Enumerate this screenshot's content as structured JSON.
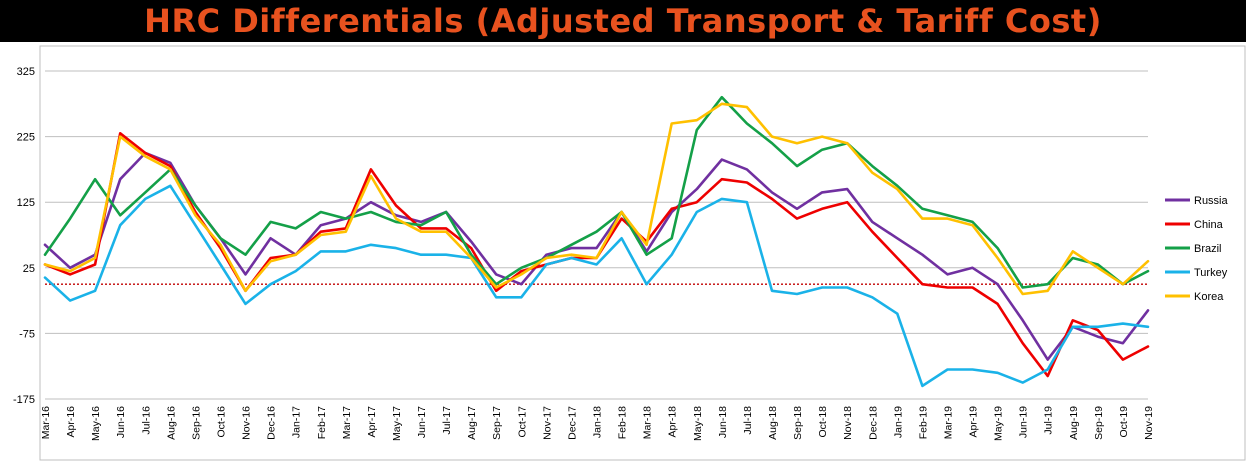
{
  "title": "HRC Differentials (Adjusted Transport & Tariff Cost)",
  "chart_data": {
    "type": "line",
    "title": "HRC Differentials (Adjusted Transport & Tariff Cost)",
    "ylim": [
      -175,
      350
    ],
    "yticks": [
      325,
      225,
      125,
      25,
      -75,
      -175
    ],
    "grid": true,
    "legend": "right",
    "reference_line": {
      "y": 0,
      "color": "#c00000",
      "style": "dotted"
    },
    "categories": [
      "Mar-16",
      "Apr-16",
      "May-16",
      "Jun-16",
      "Jul-16",
      "Aug-16",
      "Sep-16",
      "Oct-16",
      "Nov-16",
      "Dec-16",
      "Jan-17",
      "Feb-17",
      "Mar-17",
      "Apr-17",
      "May-17",
      "Jun-17",
      "Jul-17",
      "Aug-17",
      "Sep-17",
      "Oct-17",
      "Nov-17",
      "Dec-17",
      "Jan-18",
      "Feb-18",
      "Mar-18",
      "Apr-18",
      "May-18",
      "Jun-18",
      "Jul-18",
      "Aug-18",
      "Sep-18",
      "Oct-18",
      "Nov-18",
      "Dec-18",
      "Jan-19",
      "Feb-19",
      "Mar-19",
      "Apr-19",
      "May-19",
      "Jun-19",
      "Jul-19",
      "Aug-19",
      "Sep-19",
      "Oct-19",
      "Nov-19"
    ],
    "series": [
      {
        "name": "Russia",
        "color": "#7030a0",
        "values": [
          [
            0,
            60
          ],
          [
            1.0,
            25
          ],
          [
            2.0,
            45
          ],
          [
            3.0,
            160
          ],
          [
            4.0,
            200
          ],
          [
            5.0,
            185
          ],
          [
            6.0,
            120
          ],
          [
            7.0,
            70
          ],
          [
            8.0,
            15
          ],
          [
            9.0,
            70
          ],
          [
            10.0,
            45
          ],
          [
            11.0,
            90
          ],
          [
            12.0,
            100
          ],
          [
            13.0,
            125
          ],
          [
            14.0,
            105
          ],
          [
            15.0,
            95
          ],
          [
            16.0,
            110
          ],
          [
            17.0,
            65
          ],
          [
            18.0,
            15
          ],
          [
            19.0,
            0
          ],
          [
            20.0,
            45
          ],
          [
            21.0,
            55
          ],
          [
            22.0,
            55
          ],
          [
            23.0,
            110
          ],
          [
            24.0,
            50
          ],
          [
            25.0,
            110
          ],
          [
            26.0,
            145
          ],
          [
            27.0,
            190
          ],
          [
            28.0,
            175
          ],
          [
            29.0,
            140
          ],
          [
            30.0,
            115
          ],
          [
            31.0,
            140
          ],
          [
            32.0,
            145
          ],
          [
            33.0,
            95
          ],
          [
            34.0,
            70
          ],
          [
            35.0,
            45
          ],
          [
            36.0,
            15
          ],
          [
            37.0,
            25
          ],
          [
            38.0,
            0
          ],
          [
            39.0,
            -55
          ],
          [
            40.0,
            -115
          ],
          [
            41.0,
            -65
          ],
          [
            42.0,
            -80
          ],
          [
            43.0,
            -90
          ],
          [
            44.0,
            -40
          ]
        ]
      },
      {
        "name": "China",
        "color": "#ee0000",
        "values": [
          [
            0,
            30
          ],
          [
            1.0,
            15
          ],
          [
            2.0,
            30
          ],
          [
            3.0,
            230
          ],
          [
            4.0,
            200
          ],
          [
            5.0,
            180
          ],
          [
            6.0,
            110
          ],
          [
            7.0,
            55
          ],
          [
            8.0,
            -10
          ],
          [
            9.0,
            40
          ],
          [
            10.0,
            45
          ],
          [
            11.0,
            80
          ],
          [
            12.0,
            85
          ],
          [
            13.0,
            175
          ],
          [
            14.0,
            120
          ],
          [
            15.0,
            85
          ],
          [
            16.0,
            85
          ],
          [
            17.0,
            55
          ],
          [
            18.0,
            -10
          ],
          [
            19.0,
            20
          ],
          [
            20.0,
            30
          ],
          [
            21.0,
            40
          ],
          [
            22.0,
            40
          ],
          [
            23.0,
            100
          ],
          [
            24.0,
            65
          ],
          [
            25.0,
            115
          ],
          [
            26.0,
            125
          ],
          [
            27.0,
            160
          ],
          [
            28.0,
            155
          ],
          [
            29.0,
            130
          ],
          [
            30.0,
            100
          ],
          [
            31.0,
            115
          ],
          [
            32.0,
            125
          ],
          [
            33.0,
            80
          ],
          [
            34.0,
            40
          ],
          [
            35.0,
            0
          ],
          [
            36.0,
            -5
          ],
          [
            37.0,
            -5
          ],
          [
            38.0,
            -30
          ],
          [
            39.0,
            -90
          ],
          [
            40.0,
            -140
          ],
          [
            41.0,
            -55
          ],
          [
            42.0,
            -70
          ],
          [
            43.0,
            -115
          ],
          [
            44.0,
            -95
          ]
        ]
      },
      {
        "name": "Brazil",
        "color": "#14a048",
        "values": [
          [
            0,
            45
          ],
          [
            1.0,
            100
          ],
          [
            2.0,
            160
          ],
          [
            3.0,
            105
          ],
          [
            4.0,
            140
          ],
          [
            5.0,
            175
          ],
          [
            6.0,
            120
          ],
          [
            7.0,
            70
          ],
          [
            8.0,
            45
          ],
          [
            9.0,
            95
          ],
          [
            10.0,
            85
          ],
          [
            11.0,
            110
          ],
          [
            12.0,
            100
          ],
          [
            13.0,
            110
          ],
          [
            14.0,
            95
          ],
          [
            15.0,
            90
          ],
          [
            16.0,
            110
          ],
          [
            17.0,
            45
          ],
          [
            18.0,
            0
          ],
          [
            19.0,
            25
          ],
          [
            20.0,
            40
          ],
          [
            21.0,
            60
          ],
          [
            22.0,
            80
          ],
          [
            23.0,
            110
          ],
          [
            24.0,
            45
          ],
          [
            25.0,
            70
          ],
          [
            26.0,
            235
          ],
          [
            27.0,
            285
          ],
          [
            28.0,
            245
          ],
          [
            29.0,
            215
          ],
          [
            30.0,
            180
          ],
          [
            31.0,
            205
          ],
          [
            32.0,
            215
          ],
          [
            33.0,
            180
          ],
          [
            34.0,
            150
          ],
          [
            35.0,
            115
          ],
          [
            36.0,
            105
          ],
          [
            37.0,
            95
          ],
          [
            38.0,
            55
          ],
          [
            39.0,
            -5
          ],
          [
            40.0,
            0
          ],
          [
            41.0,
            40
          ],
          [
            42.0,
            30
          ],
          [
            43.0,
            0
          ],
          [
            44.0,
            20
          ]
        ]
      },
      {
        "name": "Turkey",
        "color": "#1ab2e8",
        "values": [
          [
            0,
            10
          ],
          [
            1.0,
            -25
          ],
          [
            2.0,
            -10
          ],
          [
            3.0,
            90
          ],
          [
            4.0,
            130
          ],
          [
            5.0,
            150
          ],
          [
            6.0,
            90
          ],
          [
            7.0,
            30
          ],
          [
            8.0,
            -30
          ],
          [
            9.0,
            0
          ],
          [
            10.0,
            20
          ],
          [
            11.0,
            50
          ],
          [
            12.0,
            50
          ],
          [
            13.0,
            60
          ],
          [
            14.0,
            55
          ],
          [
            15.0,
            45
          ],
          [
            16.0,
            45
          ],
          [
            17.0,
            40
          ],
          [
            18.0,
            -20
          ],
          [
            19.0,
            -20
          ],
          [
            20.0,
            30
          ],
          [
            21.0,
            40
          ],
          [
            22.0,
            30
          ],
          [
            23.0,
            70
          ],
          [
            24.0,
            0
          ],
          [
            25.0,
            45
          ],
          [
            26.0,
            110
          ],
          [
            27.0,
            130
          ],
          [
            28.0,
            125
          ],
          [
            29.0,
            -10
          ],
          [
            30.0,
            -15
          ],
          [
            31.0,
            -5
          ],
          [
            32.0,
            -5
          ],
          [
            33.0,
            -20
          ],
          [
            34.0,
            -45
          ],
          [
            35.0,
            -155
          ],
          [
            36.0,
            -130
          ],
          [
            37.0,
            -130
          ],
          [
            38.0,
            -135
          ],
          [
            39.0,
            -150
          ],
          [
            40.0,
            -130
          ],
          [
            41.0,
            -65
          ],
          [
            42.0,
            -65
          ],
          [
            43.0,
            -60
          ],
          [
            44.0,
            -65
          ]
        ]
      },
      {
        "name": "Korea",
        "color": "#ffc000",
        "values": [
          [
            0,
            30
          ],
          [
            1.0,
            20
          ],
          [
            2.0,
            40
          ],
          [
            3.0,
            225
          ],
          [
            4.0,
            195
          ],
          [
            5.0,
            175
          ],
          [
            6.0,
            105
          ],
          [
            7.0,
            60
          ],
          [
            8.0,
            -10
          ],
          [
            9.0,
            35
          ],
          [
            10.0,
            45
          ],
          [
            11.0,
            75
          ],
          [
            12.0,
            80
          ],
          [
            13.0,
            165
          ],
          [
            14.0,
            100
          ],
          [
            15.0,
            80
          ],
          [
            16.0,
            80
          ],
          [
            17.0,
            40
          ],
          [
            18.0,
            -5
          ],
          [
            19.0,
            15
          ],
          [
            20.0,
            40
          ],
          [
            21.0,
            45
          ],
          [
            22.0,
            40
          ],
          [
            23.0,
            110
          ],
          [
            24.0,
            60
          ],
          [
            25.0,
            245
          ],
          [
            26.0,
            250
          ],
          [
            27.0,
            275
          ],
          [
            28.0,
            270
          ],
          [
            29.0,
            225
          ],
          [
            30.0,
            215
          ],
          [
            31.0,
            225
          ],
          [
            32.0,
            215
          ],
          [
            33.0,
            170
          ],
          [
            34.0,
            145
          ],
          [
            35.0,
            100
          ],
          [
            36.0,
            100
          ],
          [
            37.0,
            90
          ],
          [
            38.0,
            40
          ],
          [
            39.0,
            -15
          ],
          [
            40.0,
            -10
          ],
          [
            41.0,
            50
          ],
          [
            42.0,
            25
          ],
          [
            43.0,
            0
          ],
          [
            44.0,
            35
          ]
        ]
      }
    ]
  }
}
